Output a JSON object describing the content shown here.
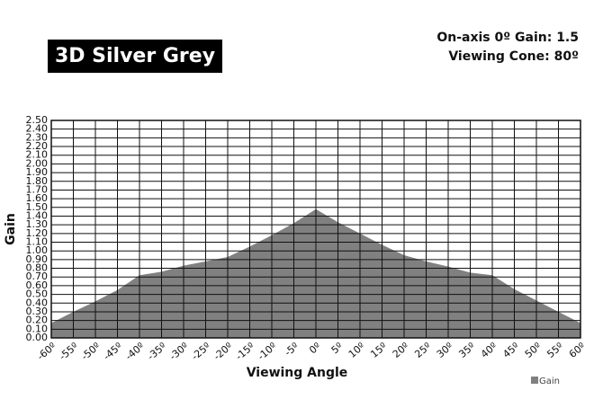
{
  "chart_data": {
    "type": "area",
    "title": "3D Silver Grey",
    "annotations": [
      "On-axis 0º Gain: 1.5",
      "Viewing Cone: 80º"
    ],
    "x_label": "Viewing Angle",
    "y_label": "Gain",
    "categories": [
      "-60º",
      "-55º",
      "-50º",
      "-45º",
      "-40º",
      "-35º",
      "-30º",
      "-25º",
      "-20º",
      "-15º",
      "-10º",
      "-5º",
      "0º",
      "5º",
      "10º",
      "15º",
      "20º",
      "25º",
      "30º",
      "35º",
      "40º",
      "45º",
      "50º",
      "55º",
      "60º"
    ],
    "series": [
      {
        "name": "Gain",
        "color": "#808080",
        "values": [
          0.17,
          0.3,
          0.42,
          0.55,
          0.72,
          0.76,
          0.83,
          0.88,
          0.93,
          1.05,
          1.18,
          1.32,
          1.48,
          1.33,
          1.2,
          1.07,
          0.95,
          0.88,
          0.82,
          0.75,
          0.72,
          0.56,
          0.43,
          0.3,
          0.17
        ]
      }
    ],
    "ylim": [
      0,
      2.5
    ],
    "yticks": [
      {
        "value": 0,
        "label": "0.00"
      },
      {
        "value": 0.1,
        "label": "0.10"
      },
      {
        "value": 0.2,
        "label": "0.20"
      },
      {
        "value": 0.3,
        "label": "0.30"
      },
      {
        "value": 0.4,
        "label": "0.40"
      },
      {
        "value": 0.5,
        "label": "0.50"
      },
      {
        "value": 0.6,
        "label": "0.60"
      },
      {
        "value": 0.7,
        "label": "0.70"
      },
      {
        "value": 0.8,
        "label": "0.80"
      },
      {
        "value": 0.9,
        "label": "0.90"
      },
      {
        "value": 1,
        "label": "1.00"
      },
      {
        "value": 1.1,
        "label": "1.10"
      },
      {
        "value": 1.2,
        "label": "1.20"
      },
      {
        "value": 1.3,
        "label": "1.30"
      },
      {
        "value": 1.4,
        "label": "1.40"
      },
      {
        "value": 1.5,
        "label": "1.50"
      },
      {
        "value": 1.6,
        "label": "1.60"
      },
      {
        "value": 1.7,
        "label": "1.70"
      },
      {
        "value": 1.8,
        "label": "1.80"
      },
      {
        "value": 1.9,
        "label": "1.90"
      },
      {
        "value": 2,
        "label": "2.00"
      },
      {
        "value": 2.1,
        "label": "2.10"
      },
      {
        "value": 2.2,
        "label": "2.20"
      },
      {
        "value": 2.3,
        "label": "2.30"
      },
      {
        "value": 2.4,
        "label": "2.40"
      },
      {
        "value": 2.5,
        "label": "2.50"
      }
    ],
    "grid": true,
    "legend": "bottom-right"
  }
}
